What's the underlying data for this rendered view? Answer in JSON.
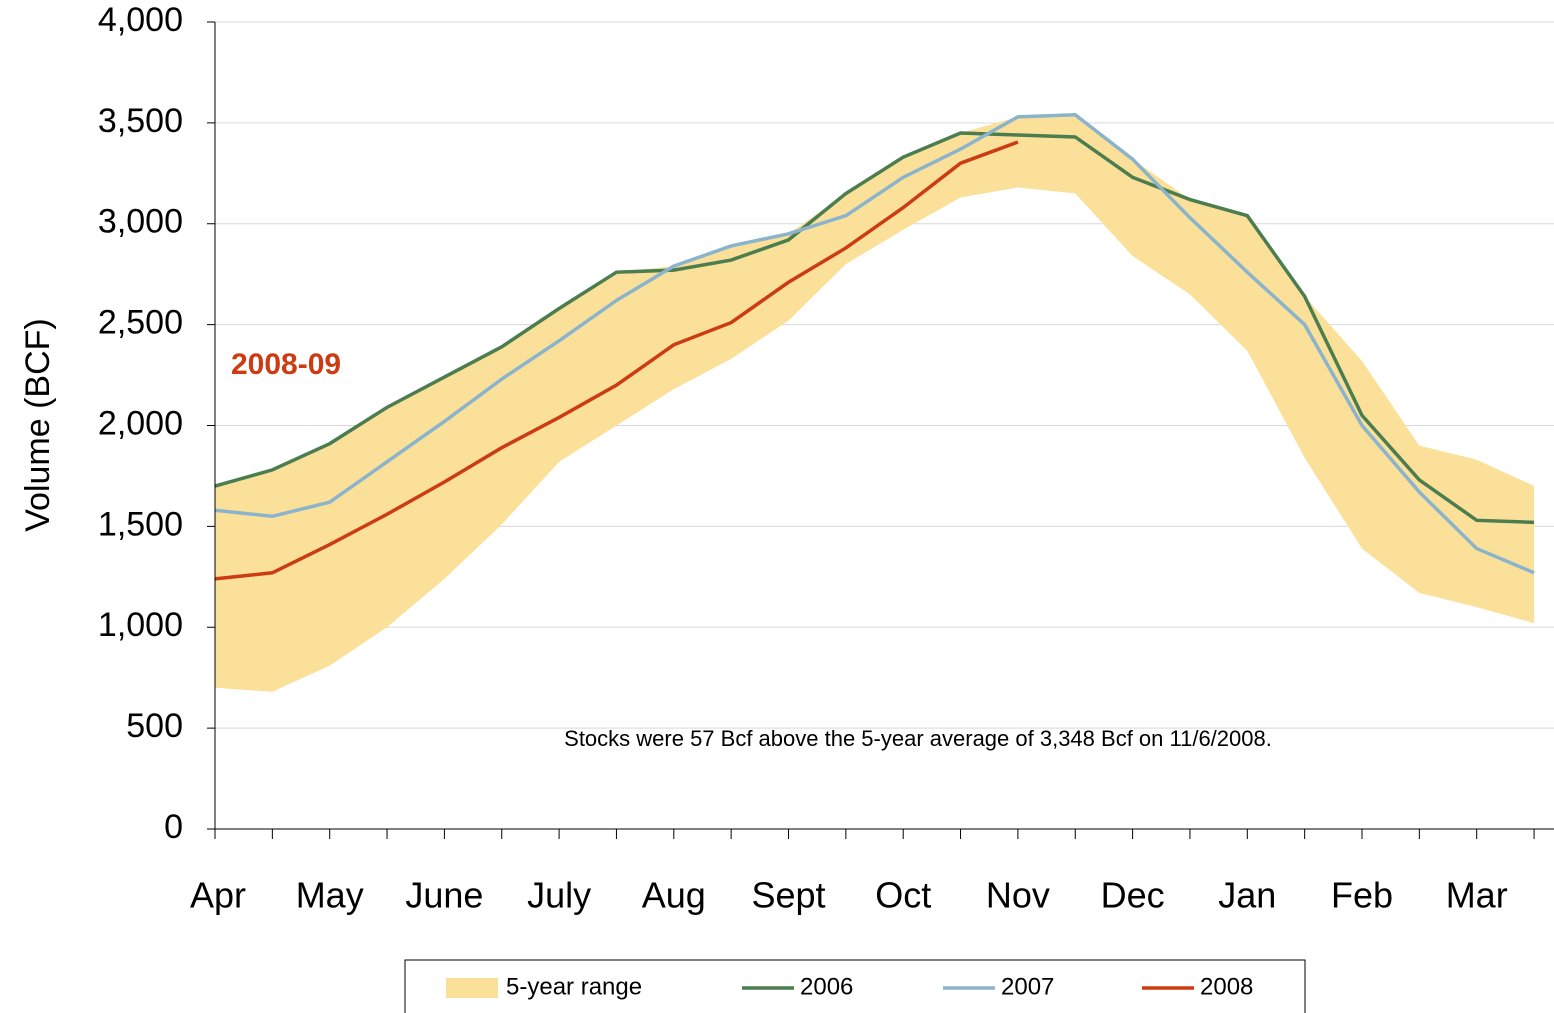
{
  "chart_data": {
    "type": "line",
    "y_label": "Volume (BCF)",
    "annotation": "Stocks were 57 Bcf above the 5-year average of 3,348 Bcf on 11/6/2008.",
    "series_label": "2008-09",
    "categories": [
      "Apr",
      null,
      "May",
      null,
      "June",
      null,
      "July",
      null,
      "Aug",
      null,
      "Sept",
      null,
      "Oct",
      null,
      "Nov",
      null,
      "Dec",
      null,
      "Jan",
      null,
      "Feb",
      null,
      "Mar",
      null
    ],
    "range": {
      "name": "5-year range",
      "color": "#fbe09a",
      "low": [
        700,
        680,
        810,
        1000,
        1240,
        1510,
        1820,
        2000,
        2180,
        2330,
        2520,
        2800,
        2970,
        3130,
        3180,
        3150,
        2840,
        2650,
        2370,
        1840,
        1390,
        1170,
        1100,
        1020
      ],
      "high": [
        1700,
        1780,
        1910,
        2090,
        2240,
        2390,
        2580,
        2760,
        2790,
        2890,
        2950,
        3150,
        3330,
        3450,
        3530,
        3540,
        3320,
        3120,
        3040,
        2640,
        2320,
        1900,
        1830,
        1700
      ]
    },
    "series": [
      {
        "name": "2006",
        "color": "#4b7d4f",
        "values": [
          1700,
          1780,
          1910,
          2090,
          2240,
          2390,
          2580,
          2760,
          2770,
          2820,
          2920,
          3150,
          3330,
          3450,
          3440,
          3430,
          3230,
          3120,
          3040,
          2640,
          2050,
          1730,
          1530,
          1520
        ]
      },
      {
        "name": "2007",
        "color": "#8ab4cc",
        "values": [
          1580,
          1550,
          1620,
          1820,
          2020,
          2230,
          2420,
          2620,
          2790,
          2890,
          2950,
          3040,
          3230,
          3370,
          3530,
          3540,
          3320,
          3030,
          2760,
          2500,
          2000,
          1670,
          1390,
          1270
        ]
      },
      {
        "name": "2008",
        "color": "#cc3b12",
        "values": [
          1240,
          1270,
          1410,
          1560,
          1720,
          1890,
          2040,
          2200,
          2400,
          2510,
          2710,
          2880,
          3080,
          3300,
          3405,
          null,
          null,
          null,
          null,
          null,
          null,
          null,
          null,
          null
        ]
      }
    ],
    "ylim": [
      0,
      4000
    ],
    "yticks": [
      0,
      500,
      {
        "value": 1000,
        "label": "1,000"
      },
      {
        "value": 1500,
        "label": "1,500"
      },
      {
        "value": 2000,
        "label": "2,000"
      },
      {
        "value": 2500,
        "label": "2,500"
      },
      {
        "value": 3000,
        "label": "3,000"
      },
      {
        "value": 3500,
        "label": "3,500"
      },
      {
        "value": 4000,
        "label": "4,000"
      }
    ],
    "grid": true
  }
}
